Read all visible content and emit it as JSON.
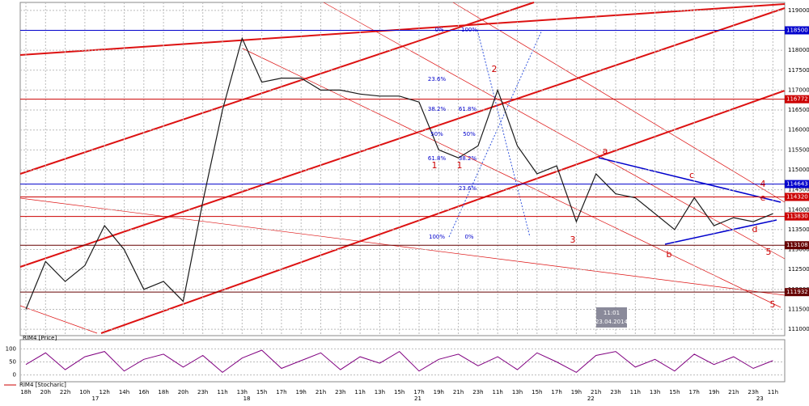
{
  "chart_data": [
    {
      "type": "line",
      "categories": [
        "18h",
        "20h",
        "22h",
        "10h",
        "12h",
        "14h",
        "16h",
        "18h",
        "20h",
        "23h",
        "11h",
        "13h",
        "15h",
        "17h",
        "19h",
        "21h",
        "23h",
        "11h",
        "13h",
        "15h",
        "17h",
        "19h",
        "21h",
        "23h",
        "11h",
        "13h",
        "15h",
        "17h",
        "19h",
        "21h",
        "23h",
        "11h",
        "13h",
        "15h",
        "17h",
        "19h",
        "21h",
        "23h",
        "11h"
      ],
      "values": [
        111500,
        112700,
        112200,
        112600,
        113600,
        113000,
        112000,
        112200,
        111700,
        114200,
        116500,
        118300,
        117200,
        117300,
        117300,
        117000,
        117000,
        116900,
        116850,
        116850,
        116700,
        115500,
        115300,
        115600,
        117000,
        115600,
        114900,
        115100,
        113700,
        114900,
        114400,
        114300,
        113900,
        113500,
        114300,
        113600,
        113800,
        113700,
        113900
      ],
      "color": "#1a1a1a",
      "date_labels": [
        "17",
        "18",
        "21",
        "22",
        "23"
      ],
      "ylim": [
        110840,
        119200
      ],
      "yticks": [
        111000,
        111500,
        112000,
        112500,
        113000,
        113500,
        114000,
        114500,
        115000,
        115500,
        116000,
        116500,
        117000,
        117500,
        118000,
        118500,
        119000
      ],
      "grid": true,
      "levels": [
        118500,
        116772,
        114643,
        114320,
        113830,
        113108,
        111932
      ],
      "level_colors": [
        "#0000cc",
        "#cc0000",
        "#0000cc",
        "#cc0000",
        "#cc0000",
        "#660000",
        "#660000"
      ],
      "annotations": [
        "0%",
        "100%",
        "23.6%",
        "38.2%",
        "61.8%",
        "50%",
        "50%",
        "61.8%",
        "38.2%",
        "23.6%",
        "100%",
        "0%",
        "1",
        "1",
        "2",
        "3",
        "a",
        "b",
        "c",
        "d",
        "e",
        "4",
        "5",
        "5"
      ],
      "annotation_colors": [
        "#0000cc",
        "#0000cc",
        "#0000cc",
        "#0000cc",
        "#0000cc",
        "#0000cc",
        "#0000cc",
        "#0000cc",
        "#0000cc",
        "#0000cc",
        "#0000cc",
        "#0000cc",
        "#cc0000",
        "#cc0000",
        "#cc0000",
        "#cc0000",
        "#cc0000",
        "#cc0000",
        "#cc0000",
        "#cc0000",
        "#cc0000",
        "#cc0000",
        "#cc0000",
        "#cc0000"
      ],
      "timestamp": [
        "11:01",
        "23.04.2014"
      ]
    },
    {
      "type": "line",
      "title": "RIM4 [Price]",
      "footer_label": "RIM4 [Stocharic]",
      "values": [
        40,
        85,
        20,
        70,
        90,
        15,
        60,
        80,
        30,
        75,
        10,
        65,
        95,
        25,
        55,
        85,
        20,
        70,
        45,
        90,
        15,
        60,
        80,
        35,
        70,
        20,
        85,
        50,
        10,
        75,
        90,
        30,
        60,
        15,
        80,
        40,
        70,
        25,
        55
      ],
      "color": "#800080",
      "ylim": [
        -20,
        120
      ],
      "yticks": [
        0,
        50,
        100
      ]
    }
  ]
}
